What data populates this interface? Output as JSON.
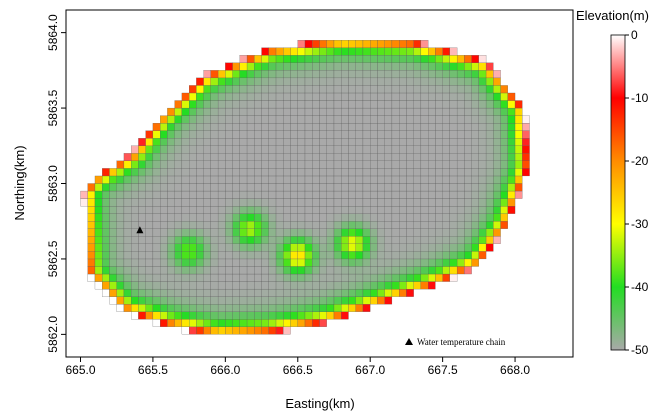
{
  "chart_data": {
    "type": "heatmap",
    "xlabel": "Easting(km)",
    "ylabel": "Northing(km)",
    "xlim": [
      664.9,
      668.4
    ],
    "ylim": [
      5861.85,
      5864.15
    ],
    "x_ticks": [
      "665.0",
      "665.5",
      "666.0",
      "666.5",
      "667.0",
      "667.5",
      "668.0"
    ],
    "x_tick_values": [
      665.0,
      665.5,
      666.0,
      666.5,
      667.0,
      667.5,
      668.0
    ],
    "y_ticks": [
      "5862.0",
      "5862.5",
      "5863.0",
      "5863.5",
      "5864.0"
    ],
    "y_tick_values": [
      5862.0,
      5862.5,
      5863.0,
      5863.5,
      5864.0
    ],
    "colorbar": {
      "title": "Elevation(m)",
      "ticks": [
        "0",
        "-10",
        "-20",
        "-30",
        "-40",
        "-50"
      ],
      "tick_values": [
        0,
        -10,
        -20,
        -30,
        -40,
        -50
      ],
      "range": [
        -50,
        0
      ],
      "colors": [
        "#ffffff",
        "#ff0000",
        "#ff8c00",
        "#ffff00",
        "#22dd22",
        "#a9a9a9"
      ]
    },
    "cell_size_km": 0.05,
    "lake_outline": {
      "easting": [
        665.02,
        665.1,
        665.35,
        665.55,
        665.85,
        666.3,
        666.8,
        667.3,
        667.8,
        668.07,
        668.1,
        667.95,
        667.75,
        667.45,
        667.15,
        666.7,
        666.3,
        665.95,
        665.6,
        665.3,
        665.05
      ],
      "northing": [
        5862.95,
        5863.05,
        5863.2,
        5863.45,
        5863.72,
        5863.9,
        5863.97,
        5863.95,
        5863.82,
        5863.5,
        5863.1,
        5862.72,
        5862.45,
        5862.32,
        5862.22,
        5862.07,
        5862.0,
        5861.98,
        5862.05,
        5862.15,
        5862.4
      ]
    },
    "marker": {
      "label": "Water temperature chain",
      "easting": 665.41,
      "northing": 5862.69
    }
  }
}
